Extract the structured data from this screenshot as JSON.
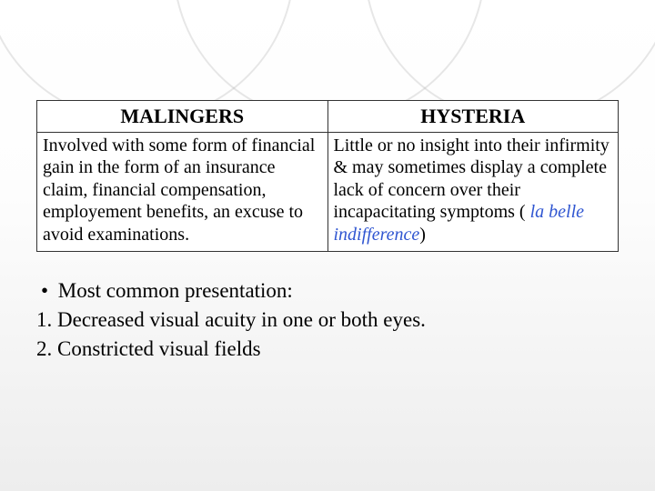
{
  "table": {
    "headers": [
      "MALINGERS",
      "HYSTERIA"
    ],
    "rows": [
      [
        "Involved with some form of financial gain in the form of  an insurance claim, financial compensation, employement benefits, an excuse to avoid examinations.",
        "Little or no insight into their infirmity & may sometimes display a complete lack of concern over their  incapacitating symptoms ( "
      ]
    ],
    "hysteria_italic_part": "la  belle indifference",
    "hysteria_tail": ")"
  },
  "bullets": {
    "lead": "Most common presentation:",
    "items": [
      "1. Decreased visual acuity in one or both  eyes.",
      "2. Constricted visual fields"
    ]
  },
  "colors": {
    "italic_blue": "#3056d1",
    "border": "#333333",
    "bg_top": "#ffffff",
    "bg_bottom": "#ededed"
  },
  "fonts": {
    "header_pt": 22,
    "cell_pt": 20,
    "bullet_pt": 23
  }
}
